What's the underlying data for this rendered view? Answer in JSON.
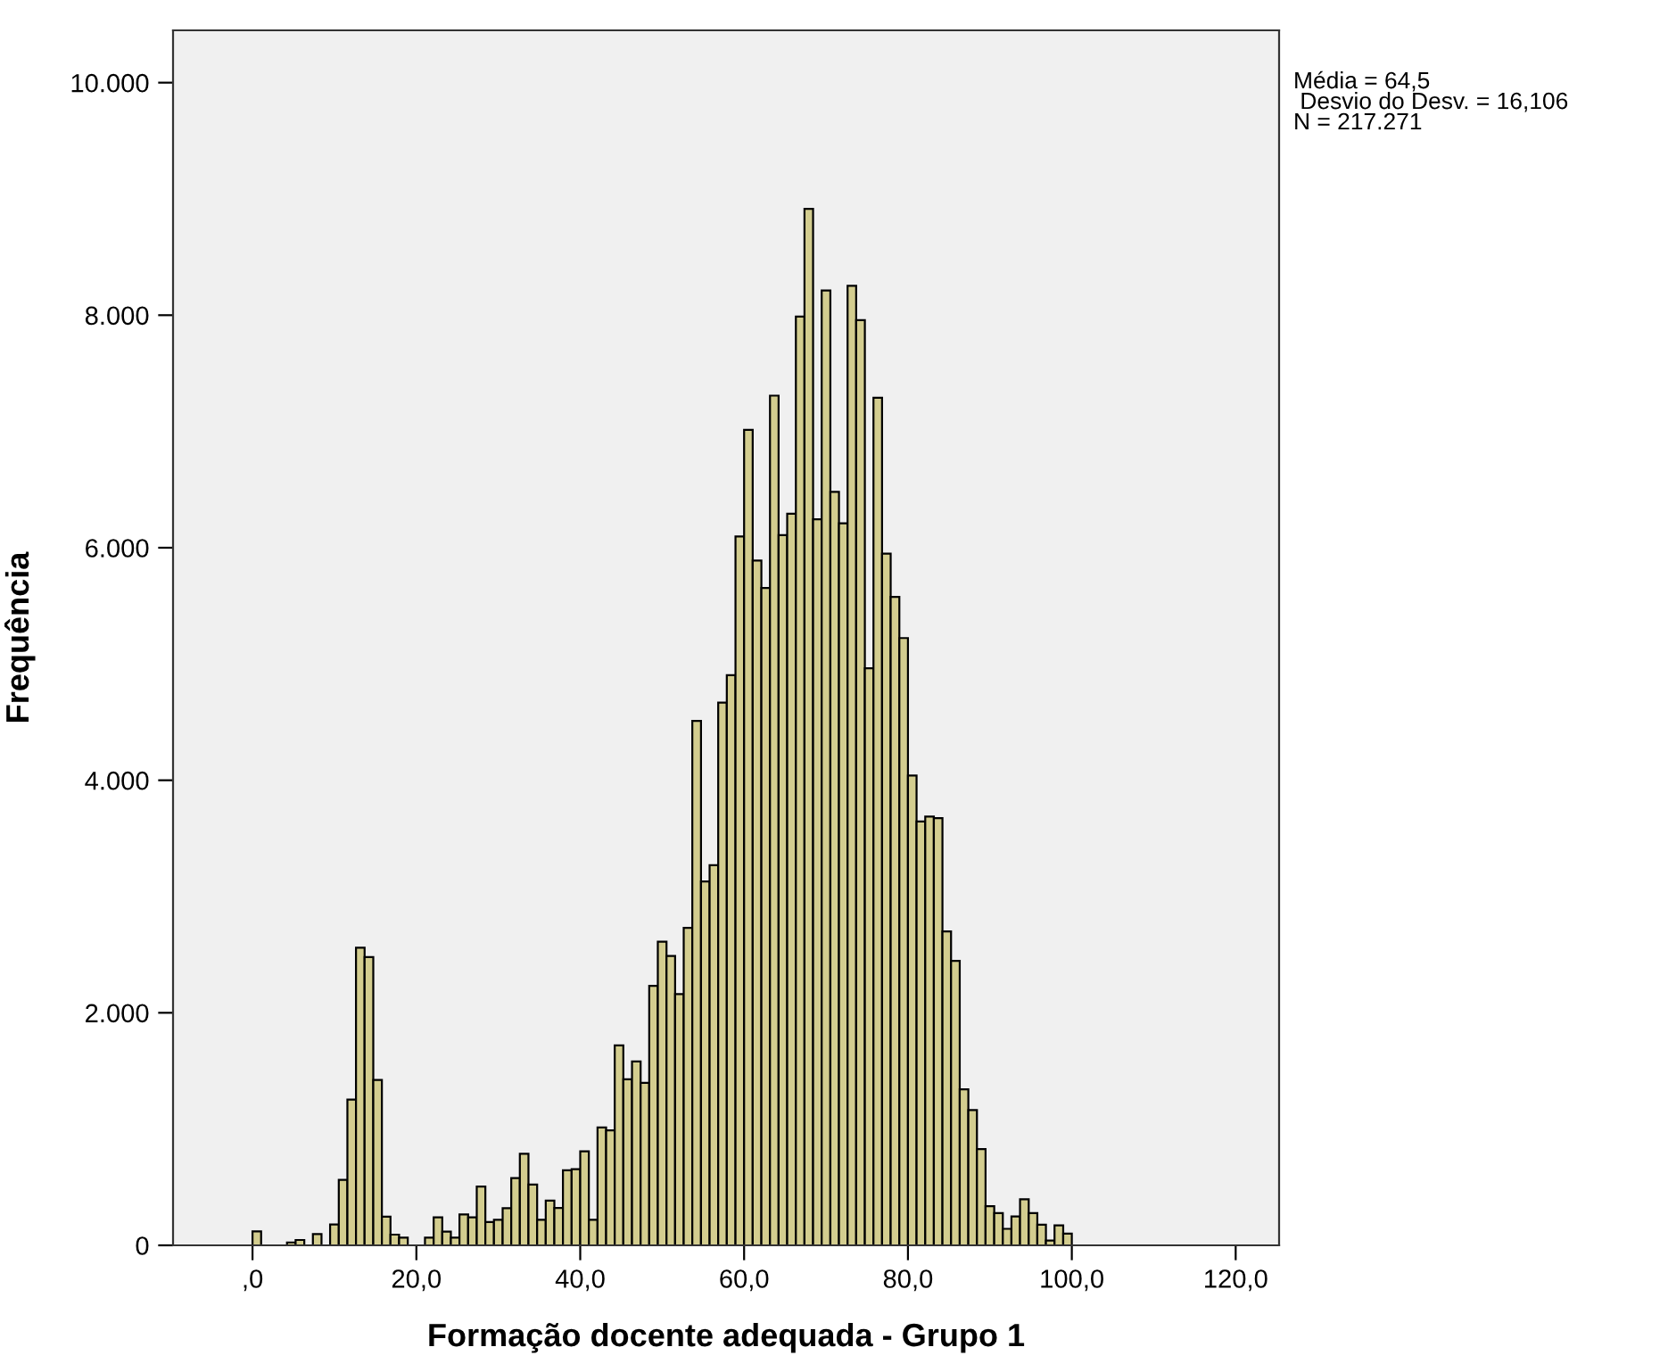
{
  "chart_data": {
    "type": "histogram",
    "xlabel": "Formação docente adequada - Grupo 1",
    "ylabel": "Frequência",
    "annotations": [
      "Média = 64,5",
      " Desvio do Desv. = 16,106",
      "N = 217.271"
    ],
    "bins": [
      0,
      1.05,
      2.11,
      3.16,
      4.21,
      5.26,
      6.32,
      7.37,
      8.42,
      9.47,
      10.53,
      11.58,
      12.63,
      13.68,
      14.74,
      15.79,
      16.84,
      17.89,
      18.95,
      20,
      21.05,
      22.11,
      23.16,
      24.21,
      25.26,
      26.32,
      27.37,
      28.42,
      29.47,
      30.53,
      31.58,
      32.63,
      33.68,
      34.74,
      35.79,
      36.84,
      37.89,
      38.95,
      40,
      41.05,
      42.11,
      43.16,
      44.21,
      45.26,
      46.32,
      47.37,
      48.42,
      49.47,
      50.53,
      51.58,
      52.63,
      53.68,
      54.74,
      55.79,
      56.84,
      57.89,
      58.95,
      60,
      61.05,
      62.11,
      63.16,
      64.21,
      65.26,
      66.32,
      67.37,
      68.42,
      69.47,
      70.53,
      71.58,
      72.63,
      73.68,
      74.74,
      75.79,
      76.84,
      77.89,
      78.95,
      80,
      81.05,
      82.11,
      83.16,
      84.21,
      85.26,
      86.32,
      87.37,
      88.42,
      89.47,
      90.53,
      91.58,
      92.63,
      93.68,
      94.74,
      95.79,
      96.84,
      97.89,
      98.95,
      100
    ],
    "values": [
      120,
      0,
      0,
      0,
      25,
      46,
      0,
      97,
      0,
      180,
      563,
      1254,
      2560,
      2480,
      1423,
      246,
      92,
      67,
      0,
      0,
      67,
      240,
      118,
      67,
      266,
      240,
      505,
      200,
      220,
      320,
      578,
      788,
      522,
      220,
      384,
      322,
      645,
      655,
      809,
      220,
      1014,
      988,
      1720,
      1428,
      1582,
      1398,
      2232,
      2611,
      2488,
      2160,
      2730,
      4510,
      3130,
      3270,
      4667,
      4904,
      6097,
      7013,
      5890,
      5654,
      7308,
      6109,
      6292,
      7988,
      8915,
      6245,
      8212,
      6481,
      6210,
      8253,
      7958,
      4963,
      7290,
      5949,
      5577,
      5223,
      4041,
      3645,
      3687,
      3675,
      2700,
      2446,
      1341,
      1164,
      827,
      337,
      278,
      142,
      248,
      396,
      278,
      177,
      41,
      171,
      100
    ],
    "color": "#d3cd8f",
    "xlim": [
      -9.7,
      125.3
    ],
    "ylim": [
      0,
      10450
    ],
    "xticks": [
      {
        "value": 0,
        "label": ",0"
      },
      {
        "value": 20,
        "label": "20,0"
      },
      {
        "value": 40,
        "label": "40,0"
      },
      {
        "value": 60,
        "label": "60,0"
      },
      {
        "value": 80,
        "label": "80,0"
      },
      {
        "value": 100,
        "label": "100,0"
      },
      {
        "value": 120,
        "label": "120,0"
      }
    ],
    "yticks": [
      0,
      {
        "value": 2000,
        "label": "2.000"
      },
      {
        "value": 4000,
        "label": "4.000"
      },
      {
        "value": 6000,
        "label": "6.000"
      },
      {
        "value": 8000,
        "label": "8.000"
      },
      {
        "value": 10000,
        "label": "10.000"
      }
    ],
    "grid": false,
    "legend": false
  }
}
